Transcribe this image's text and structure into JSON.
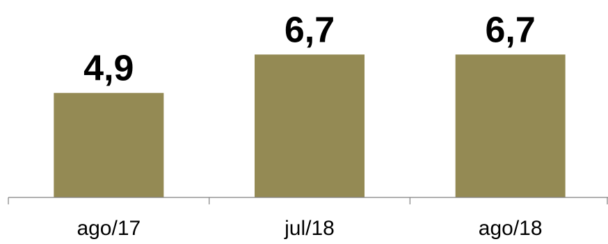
{
  "chart_data": {
    "type": "bar",
    "categories": [
      "ago/17",
      "jul/18",
      "ago/18"
    ],
    "values": [
      4.9,
      6.7,
      6.7
    ],
    "value_labels": [
      "4,9",
      "6,7",
      "6,7"
    ],
    "title": "",
    "xlabel": "",
    "ylabel": "",
    "ylim": [
      0,
      8.8
    ],
    "grid": false,
    "legend": "none",
    "bar_color": "#948a54"
  }
}
